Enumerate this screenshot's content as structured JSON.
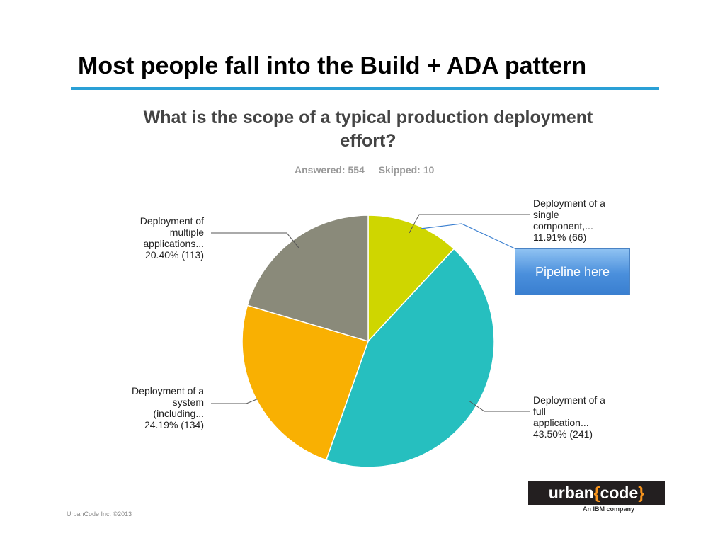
{
  "slide": {
    "title": "Most people fall into the Build + ADA pattern",
    "footer": "UrbanCode Inc. ©2013"
  },
  "callout": {
    "label": "Pipeline here"
  },
  "logo": {
    "text_main": "urban",
    "text_code": "code",
    "brace_open": "{",
    "brace_close": "}",
    "sub": "An IBM company"
  },
  "colors": {
    "rule": "#2aa0d6",
    "single_component": "#cfd600",
    "full_application": "#26bfbf",
    "system": "#f9b002",
    "multiple_applications": "#8a8a7a"
  },
  "chart_data": {
    "type": "pie",
    "title": "What is the scope of a typical production deployment effort?",
    "answered_label": "Answered: 554",
    "skipped_label": "Skipped: 10",
    "slices": [
      {
        "key": "single_component",
        "label": [
          "Deployment of a",
          "single",
          "component,..."
        ],
        "value_label": "11.91% (66)",
        "percent": 11.91,
        "count": 66
      },
      {
        "key": "full_application",
        "label": [
          "Deployment of a",
          "full",
          "application..."
        ],
        "value_label": "43.50% (241)",
        "percent": 43.5,
        "count": 241
      },
      {
        "key": "system",
        "label": [
          "Deployment of a",
          "system",
          "(including..."
        ],
        "value_label": "24.19% (134)",
        "percent": 24.19,
        "count": 134
      },
      {
        "key": "multiple_applications",
        "label": [
          "Deployment of",
          "multiple",
          "applications..."
        ],
        "value_label": "20.40% (113)",
        "percent": 20.4,
        "count": 113
      }
    ]
  }
}
